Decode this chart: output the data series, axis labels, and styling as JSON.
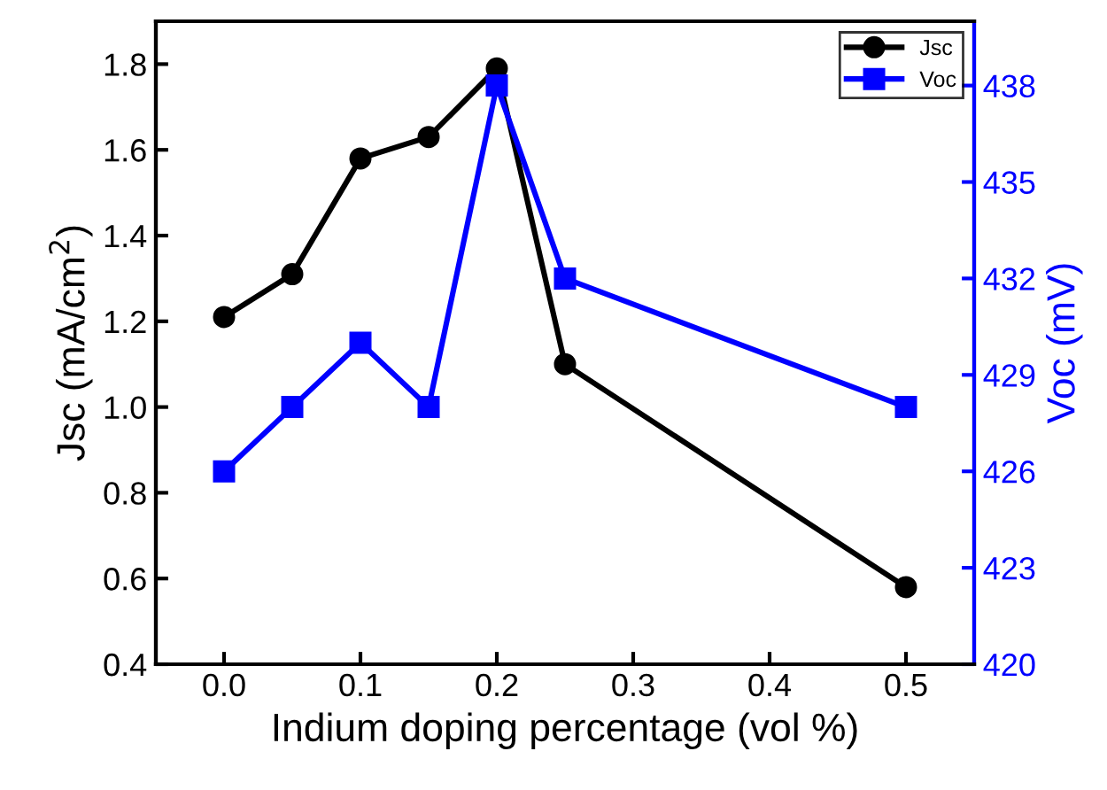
{
  "chart_data": {
    "type": "line",
    "xlabel": "Indium doping percentage (vol %)",
    "ylabel": "Jsc (mA/cm$^{2}$)",
    "y2label": "Voc (mV)",
    "x": [
      0.0,
      0.05,
      0.1,
      0.15,
      0.2,
      0.25,
      0.5
    ],
    "series": [
      {
        "name": "Jsc",
        "color": "#000000",
        "marker": "circle",
        "values": [
          1.21,
          1.31,
          1.58,
          1.63,
          1.79,
          1.1,
          0.58
        ]
      },
      {
        "name": "Voc",
        "color": "#0000ff",
        "marker": "square",
        "axis": "y2",
        "values": [
          426,
          428,
          430,
          428,
          438,
          432,
          428
        ]
      }
    ],
    "xlim": [
      -0.05,
      0.55
    ],
    "xticks": [
      {
        "value": 0.0,
        "label": "0.0"
      },
      0.1,
      0.2,
      0.3,
      0.4,
      0.5
    ],
    "ylim": [
      0.4,
      1.9
    ],
    "yticks": [
      0.4,
      0.6,
      0.8,
      {
        "value": 1.0,
        "label": "1.0"
      },
      1.2,
      1.4,
      1.6,
      1.8
    ],
    "y2lim": [
      420,
      440
    ],
    "y2ticks": [
      420,
      423,
      426,
      429,
      432,
      435,
      438
    ],
    "legend": "top right",
    "grid": false
  }
}
